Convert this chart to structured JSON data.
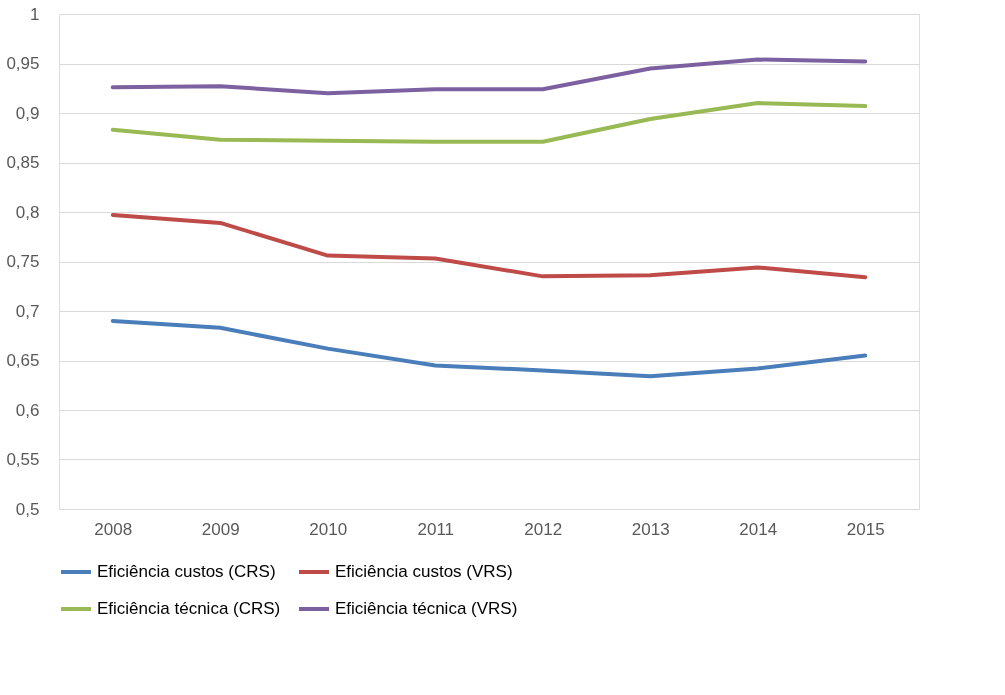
{
  "chart_data": {
    "type": "line",
    "categories": [
      "2008",
      "2009",
      "2010",
      "2011",
      "2012",
      "2013",
      "2014",
      "2015"
    ],
    "series": [
      {
        "name": "Eficiência custos (CRS)",
        "color": "#4a7ebb",
        "values": [
          0.69,
          0.683,
          0.662,
          0.645,
          0.64,
          0.634,
          0.642,
          0.655
        ]
      },
      {
        "name": "Eficiência custos (VRS)",
        "color": "#be4b48",
        "values": [
          0.797,
          0.789,
          0.756,
          0.753,
          0.735,
          0.736,
          0.744,
          0.734
        ]
      },
      {
        "name": "Eficiência técnica (CRS)",
        "color": "#98b954",
        "values": [
          0.883,
          0.873,
          0.872,
          0.871,
          0.871,
          0.894,
          0.91,
          0.907
        ]
      },
      {
        "name": "Eficiência técnica (VRS)",
        "color": "#7d60a0",
        "values": [
          0.926,
          0.927,
          0.92,
          0.924,
          0.924,
          0.945,
          0.954,
          0.952
        ]
      }
    ],
    "ylim": [
      0.5,
      1
    ],
    "yticks": [
      {
        "value": 0.5,
        "label": "0,5"
      },
      {
        "value": 0.55,
        "label": "0,55"
      },
      {
        "value": 0.6,
        "label": "0,6"
      },
      {
        "value": 0.65,
        "label": "0,65"
      },
      {
        "value": 0.7,
        "label": "0,7"
      },
      {
        "value": 0.75,
        "label": "0,75"
      },
      {
        "value": 0.8,
        "label": "0,8"
      },
      {
        "value": 0.85,
        "label": "0,85"
      },
      {
        "value": 0.9,
        "label": "0,9"
      },
      {
        "value": 0.95,
        "label": "0,95"
      },
      1
    ],
    "grid": "y",
    "legend": "bottom",
    "marker": "none",
    "line_style": "solid"
  }
}
